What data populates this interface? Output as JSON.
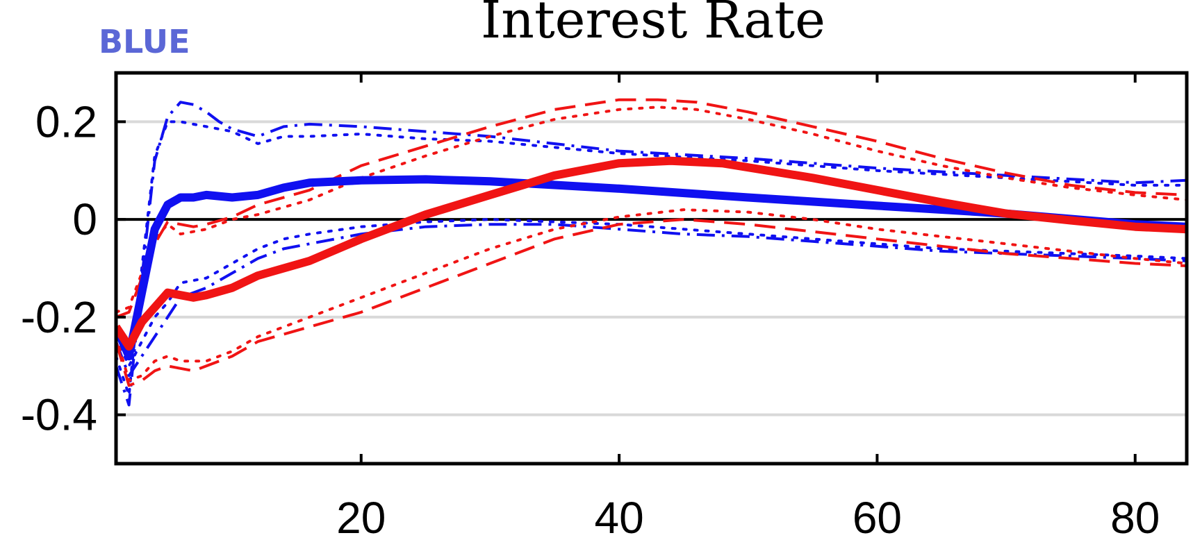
{
  "tag": "BLUE",
  "colors": {
    "blue": "#1010f0",
    "red": "#f01414",
    "grid": "#d9d9d9",
    "axis": "#000000",
    "tag": "#5b67d6"
  },
  "chart_data": {
    "type": "line",
    "title": "Interest Rate",
    "xlabel": "",
    "ylabel": "",
    "xlim": [
      1,
      84
    ],
    "ylim": [
      -0.5,
      0.3
    ],
    "xticks": [
      20,
      40,
      60,
      80
    ],
    "yticks": [
      0.2,
      0,
      -0.2,
      -0.4
    ],
    "ytick_labels": [
      "0.2",
      "0",
      "-0.2",
      "-0.4"
    ],
    "grid": "horizontal",
    "zero_line": true,
    "series": [
      {
        "color": "blue",
        "style": "solid",
        "width": "thick",
        "x": [
          1,
          2,
          3,
          4,
          5,
          6,
          7,
          8,
          10,
          12,
          14,
          16,
          20,
          25,
          30,
          40,
          50,
          60,
          70,
          80,
          84
        ],
        "y": [
          -0.22,
          -0.28,
          -0.15,
          -0.02,
          0.03,
          0.045,
          0.045,
          0.05,
          0.045,
          0.05,
          0.065,
          0.075,
          0.08,
          0.082,
          0.078,
          0.063,
          0.045,
          0.028,
          0.012,
          -0.01,
          -0.015
        ]
      },
      {
        "color": "red",
        "style": "solid",
        "width": "thick",
        "x": [
          1,
          2,
          3,
          4,
          5,
          6,
          7,
          8,
          10,
          12,
          16,
          20,
          25,
          30,
          35,
          40,
          44,
          48,
          55,
          60,
          65,
          70,
          75,
          80,
          84
        ],
        "y": [
          -0.22,
          -0.26,
          -0.21,
          -0.18,
          -0.15,
          -0.155,
          -0.16,
          -0.155,
          -0.14,
          -0.115,
          -0.085,
          -0.04,
          0.01,
          0.05,
          0.09,
          0.115,
          0.12,
          0.115,
          0.085,
          0.06,
          0.035,
          0.012,
          -0.002,
          -0.015,
          -0.02
        ]
      },
      {
        "color": "blue",
        "style": "dashdot",
        "width": "thin",
        "x": [
          1,
          2,
          3,
          4,
          5,
          6,
          7,
          8,
          9,
          10,
          12,
          14,
          16,
          20,
          25,
          30,
          40,
          50,
          60,
          70,
          80,
          84
        ],
        "y": [
          -0.3,
          -0.38,
          -0.12,
          0.12,
          0.21,
          0.24,
          0.235,
          0.22,
          0.2,
          0.185,
          0.17,
          0.19,
          0.195,
          0.19,
          0.18,
          0.17,
          0.14,
          0.125,
          0.105,
          0.09,
          0.075,
          0.08
        ]
      },
      {
        "color": "blue",
        "style": "dotted",
        "width": "thin",
        "x": [
          1,
          2,
          3,
          4,
          5,
          6,
          8,
          10,
          12,
          14,
          16,
          20,
          25,
          30,
          40,
          50,
          60,
          70,
          80,
          84
        ],
        "y": [
          -0.28,
          -0.36,
          -0.1,
          0.13,
          0.2,
          0.2,
          0.19,
          0.18,
          0.155,
          0.17,
          0.17,
          0.175,
          0.165,
          0.16,
          0.135,
          0.12,
          0.1,
          0.085,
          0.07,
          0.07
        ]
      },
      {
        "color": "blue",
        "style": "dashdot",
        "width": "thin",
        "x": [
          1,
          2,
          3,
          4,
          5,
          6,
          8,
          10,
          12,
          14,
          16,
          20,
          25,
          30,
          35,
          40,
          45,
          50,
          55,
          60,
          65,
          70,
          75,
          80,
          84
        ],
        "y": [
          -0.25,
          -0.32,
          -0.28,
          -0.24,
          -0.2,
          -0.16,
          -0.14,
          -0.11,
          -0.08,
          -0.06,
          -0.05,
          -0.03,
          -0.015,
          -0.01,
          -0.01,
          -0.02,
          -0.03,
          -0.035,
          -0.045,
          -0.055,
          -0.065,
          -0.07,
          -0.075,
          -0.08,
          -0.085
        ]
      },
      {
        "color": "blue",
        "style": "dotted",
        "width": "thin",
        "x": [
          1,
          2,
          3,
          4,
          5,
          6,
          8,
          10,
          12,
          14,
          16,
          20,
          25,
          30,
          35,
          40,
          45,
          50,
          55,
          60,
          65,
          70,
          75,
          80,
          84
        ],
        "y": [
          -0.24,
          -0.3,
          -0.25,
          -0.2,
          -0.17,
          -0.13,
          -0.12,
          -0.09,
          -0.06,
          -0.04,
          -0.03,
          -0.015,
          -0.005,
          0.0,
          -0.005,
          -0.01,
          -0.02,
          -0.03,
          -0.04,
          -0.05,
          -0.06,
          -0.065,
          -0.07,
          -0.075,
          -0.08
        ]
      },
      {
        "color": "red",
        "style": "dashed",
        "width": "thin",
        "x": [
          1,
          2,
          3,
          4,
          5,
          6,
          7,
          8,
          10,
          12,
          16,
          20,
          25,
          30,
          35,
          40,
          43,
          46,
          50,
          55,
          60,
          65,
          70,
          75,
          80,
          84
        ],
        "y": [
          -0.2,
          -0.19,
          -0.12,
          -0.05,
          -0.005,
          -0.01,
          -0.015,
          -0.01,
          0.005,
          0.03,
          0.06,
          0.11,
          0.15,
          0.19,
          0.225,
          0.245,
          0.245,
          0.24,
          0.22,
          0.19,
          0.16,
          0.125,
          0.095,
          0.07,
          0.055,
          0.05
        ]
      },
      {
        "color": "red",
        "style": "dotted",
        "width": "thin",
        "x": [
          1,
          2,
          3,
          4,
          5,
          6,
          8,
          10,
          12,
          16,
          20,
          25,
          30,
          35,
          40,
          43,
          46,
          50,
          55,
          60,
          65,
          70,
          75,
          80,
          84
        ],
        "y": [
          -0.19,
          -0.18,
          -0.11,
          -0.04,
          -0.01,
          -0.03,
          -0.02,
          0.0,
          0.01,
          0.04,
          0.085,
          0.13,
          0.17,
          0.205,
          0.225,
          0.23,
          0.225,
          0.205,
          0.175,
          0.14,
          0.11,
          0.085,
          0.065,
          0.05,
          0.04
        ]
      },
      {
        "color": "red",
        "style": "dashed",
        "width": "thin",
        "x": [
          1,
          2,
          3,
          4,
          5,
          6,
          7,
          8,
          10,
          12,
          16,
          20,
          25,
          30,
          35,
          40,
          45,
          50,
          55,
          60,
          65,
          70,
          75,
          80,
          84
        ],
        "y": [
          -0.25,
          -0.34,
          -0.33,
          -0.31,
          -0.3,
          -0.305,
          -0.31,
          -0.3,
          -0.28,
          -0.25,
          -0.22,
          -0.19,
          -0.14,
          -0.09,
          -0.04,
          -0.01,
          0.0,
          -0.01,
          -0.025,
          -0.04,
          -0.055,
          -0.07,
          -0.08,
          -0.09,
          -0.095
        ]
      },
      {
        "color": "red",
        "style": "dotted",
        "width": "thin",
        "x": [
          1,
          2,
          3,
          4,
          5,
          6,
          8,
          10,
          12,
          16,
          20,
          25,
          30,
          35,
          40,
          45,
          50,
          55,
          60,
          65,
          70,
          75,
          80,
          84
        ],
        "y": [
          -0.24,
          -0.33,
          -0.32,
          -0.29,
          -0.28,
          -0.29,
          -0.29,
          -0.27,
          -0.24,
          -0.2,
          -0.16,
          -0.11,
          -0.06,
          -0.02,
          0.005,
          0.02,
          0.015,
          0.0,
          -0.02,
          -0.035,
          -0.05,
          -0.065,
          -0.08,
          -0.09
        ]
      }
    ]
  }
}
